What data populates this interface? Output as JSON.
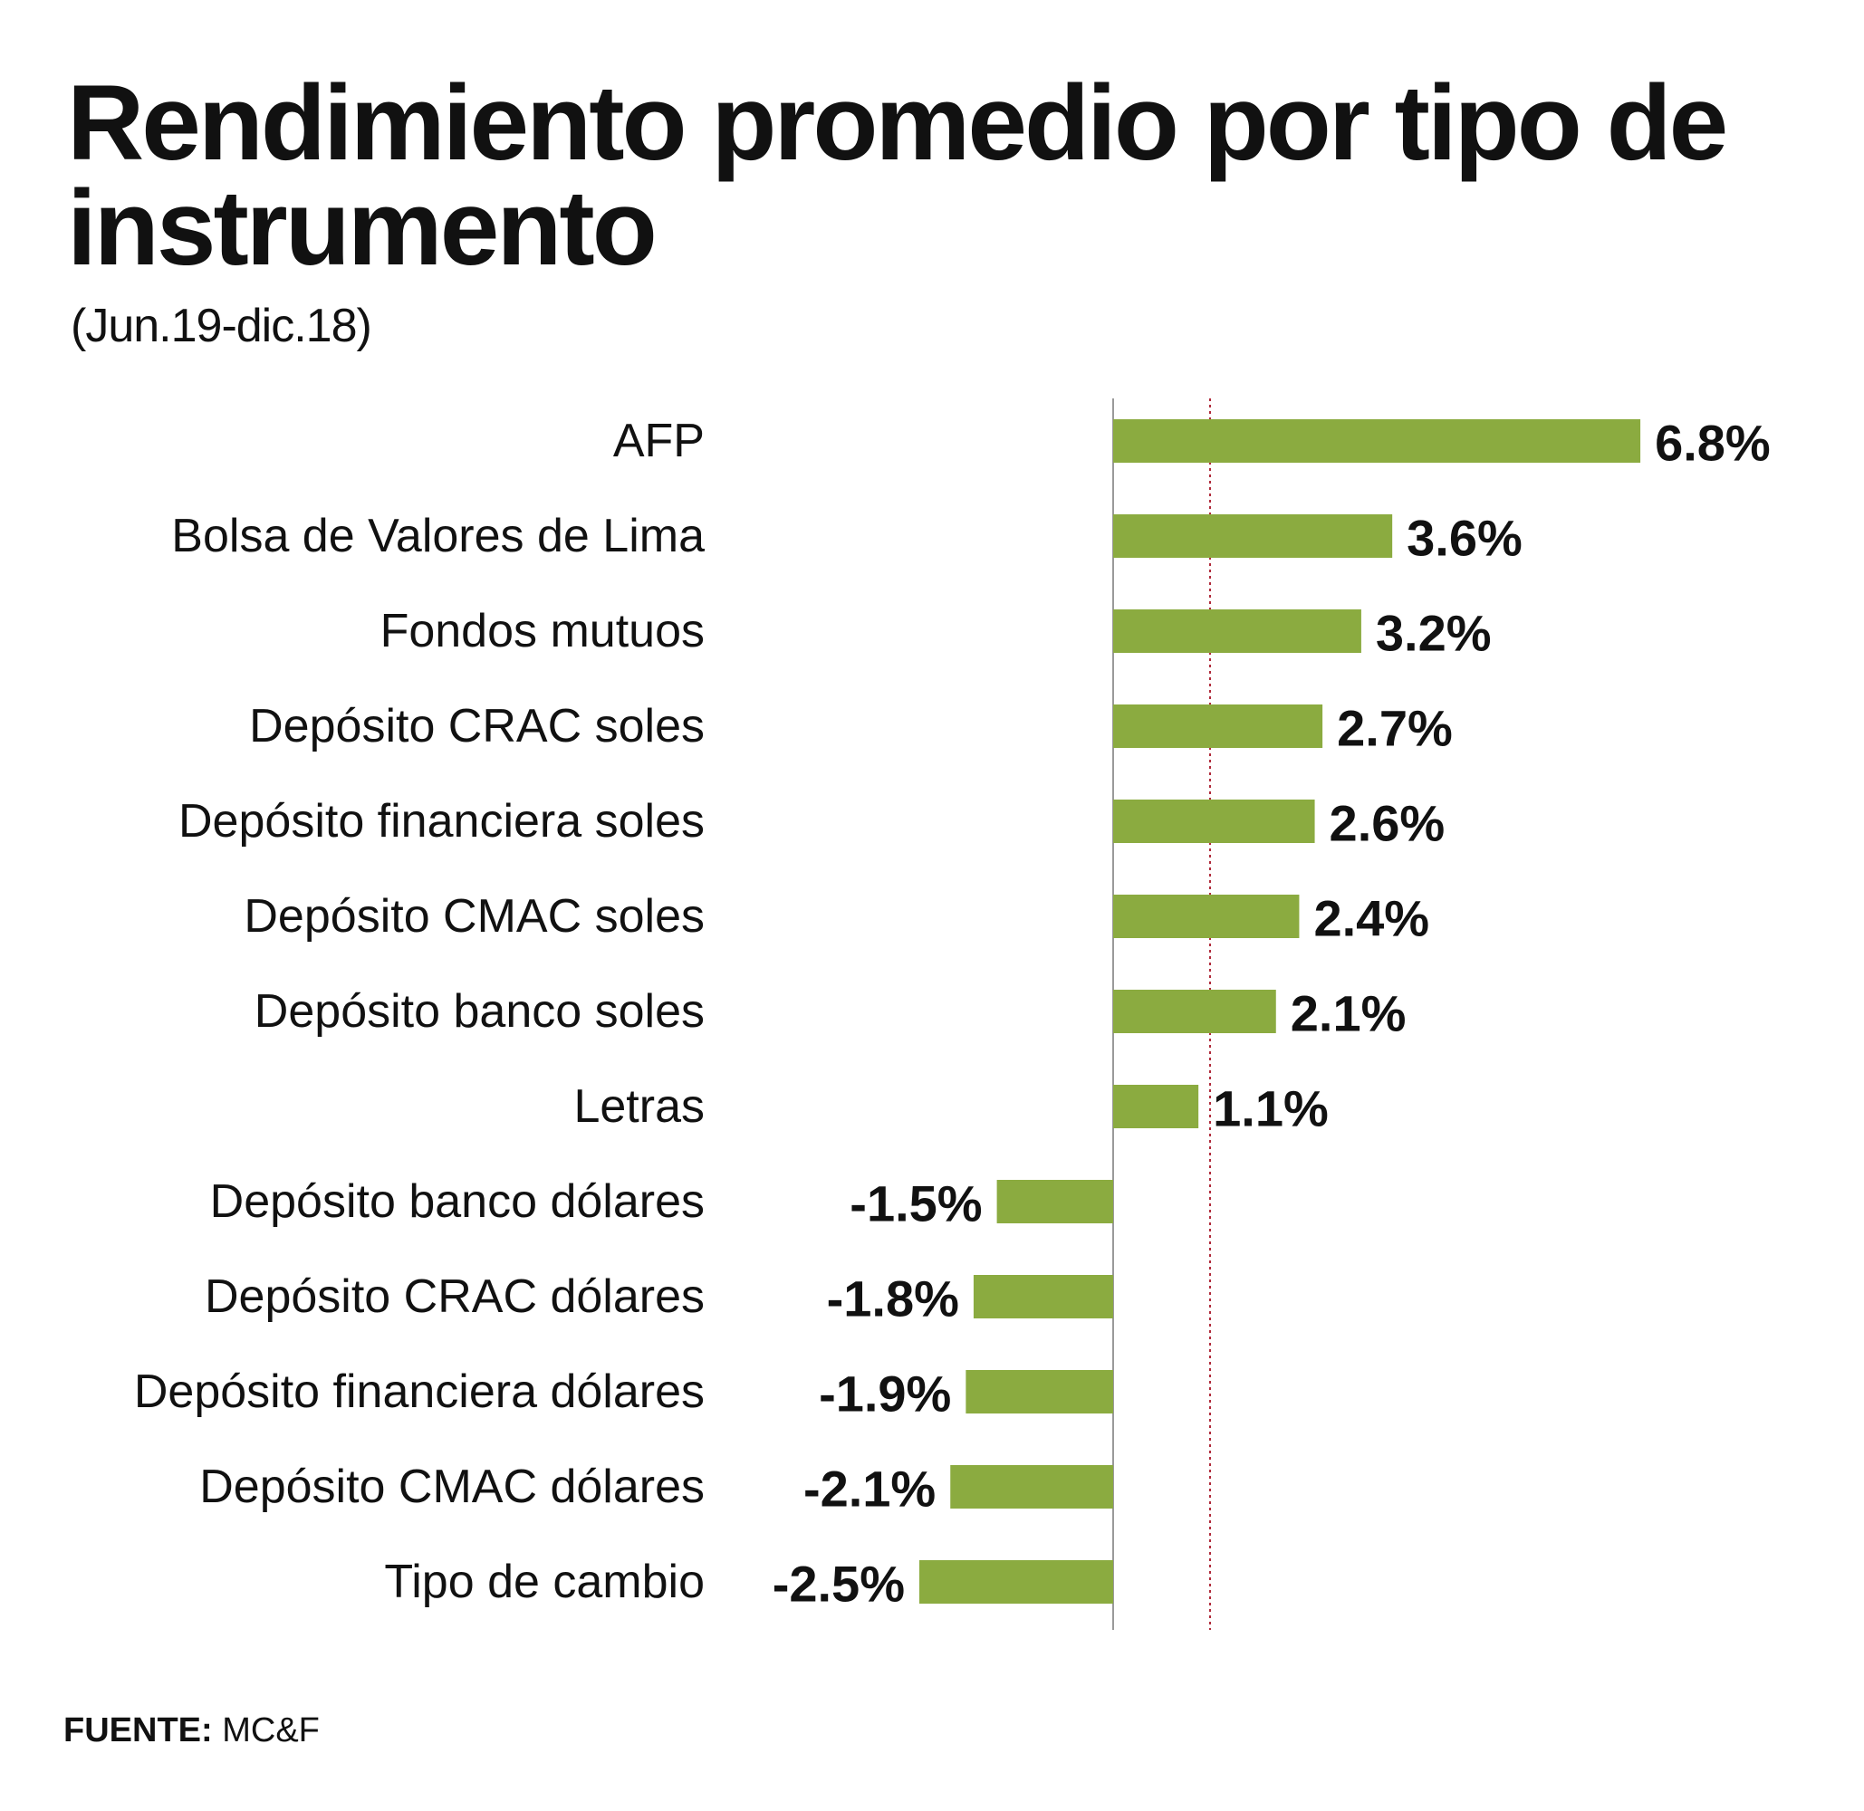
{
  "title": "Rendimiento promedio por tipo de instrumento",
  "subtitle": "(Jun.19-dic.18)",
  "source": {
    "label": "FUENTE:",
    "value": "MC&F"
  },
  "colors": {
    "bar": "#8bab40",
    "text": "#111111",
    "axis": "#9a9a9a",
    "reference": "#b02a3a"
  },
  "chart_data": {
    "type": "bar",
    "orientation": "horizontal",
    "title": "Rendimiento promedio por tipo de instrumento",
    "subtitle": "(Jun.19-dic.18)",
    "unit": "%",
    "categories": [
      "AFP",
      "Bolsa de Valores de Lima",
      "Fondos mutuos",
      "Depósito CRAC soles",
      "Depósito financiera soles",
      "Depósito CMAC soles",
      "Depósito banco soles",
      "Letras",
      "Depósito banco dólares",
      "Depósito CRAC dólares",
      "Depósito financiera dólares",
      "Depósito CMAC dólares",
      "Tipo de cambio"
    ],
    "values": [
      6.8,
      3.6,
      3.2,
      2.7,
      2.6,
      2.4,
      2.1,
      1.1,
      -1.5,
      -1.8,
      -1.9,
      -2.1,
      -2.5
    ],
    "labels": [
      "6.8%",
      "3.6%",
      "3.2%",
      "2.7%",
      "2.6%",
      "2.4%",
      "2.1%",
      "1.1%",
      "-1.5%",
      "-1.8%",
      "-1.9%",
      "-2.1%",
      "-2.5%"
    ],
    "reference_line": 1.25,
    "xlim": [
      -2.6,
      6.9
    ],
    "grid": false,
    "legend": "none"
  }
}
